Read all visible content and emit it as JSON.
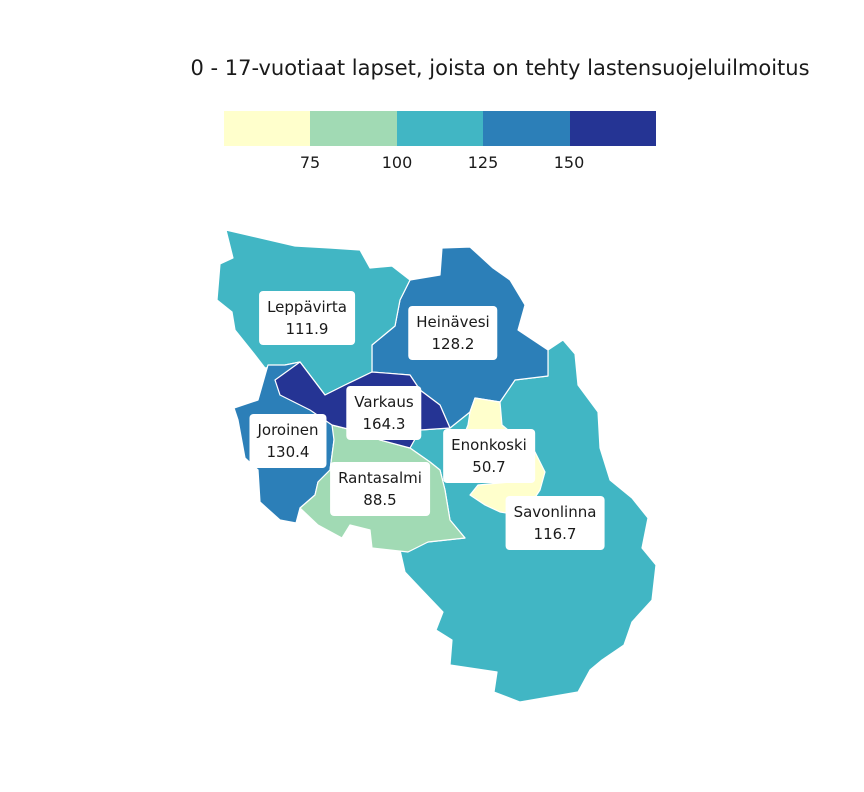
{
  "title": "0 - 17-vuotiaat lapset, joista on tehty lastensuojeluilmoitus",
  "legend": {
    "colors": [
      "#ffffcc",
      "#a1dab4",
      "#41b6c4",
      "#2c7fb8",
      "#253494"
    ],
    "ticks": [
      "75",
      "100",
      "125",
      "150"
    ]
  },
  "regions": [
    {
      "name": "Leppävirta",
      "value": "111.9",
      "color": "#41b6c4"
    },
    {
      "name": "Heinävesi",
      "value": "128.2",
      "color": "#2c7fb8"
    },
    {
      "name": "Varkaus",
      "value": "164.3",
      "color": "#253494"
    },
    {
      "name": "Joroinen",
      "value": "130.4",
      "color": "#2c7fb8"
    },
    {
      "name": "Rantasalmi",
      "value": "88.5",
      "color": "#a1dab4"
    },
    {
      "name": "Enonkoski",
      "value": "50.7",
      "color": "#ffffcc"
    },
    {
      "name": "Savonlinna",
      "value": "116.7",
      "color": "#41b6c4"
    }
  ]
}
